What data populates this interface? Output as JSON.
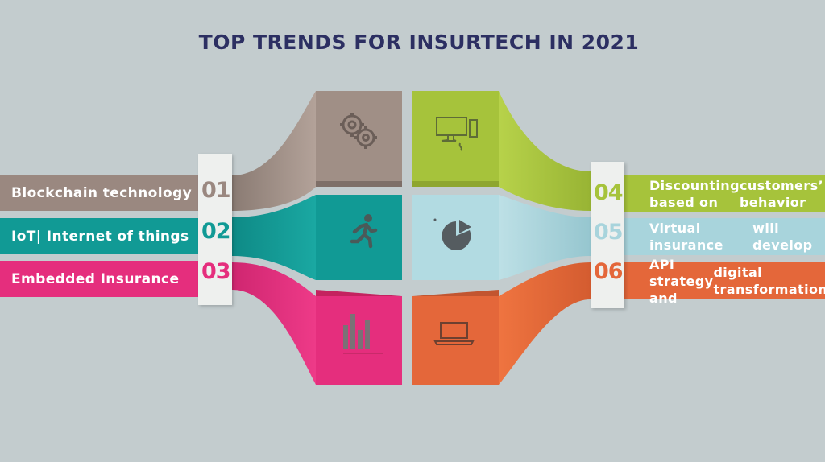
{
  "title": "TOP TRENDS FOR INSURTECH IN 2021",
  "colors": {
    "background": "#c3ccce",
    "title": "#2c2f62",
    "brown": "#9a8880",
    "teal": "#119a95",
    "pink": "#e52e7d",
    "green": "#a6c33b",
    "light_blue": "#a8d4dc",
    "orange": "#e4673a"
  },
  "left_items": [
    {
      "number": "01",
      "label": "Blockchain technology",
      "color": "#9a8880",
      "icon": "gears-icon"
    },
    {
      "number": "02",
      "label": "IoT| Internet of things",
      "color": "#119a95",
      "icon": "running-person-icon"
    },
    {
      "number": "03",
      "label": "Embedded Insurance",
      "color": "#e52e7d",
      "icon": "bar-chart-icon"
    }
  ],
  "right_items": [
    {
      "number": "04",
      "line1": "Discounting based on",
      "line2": "customers’ behavior",
      "color": "#a6c33b",
      "icon": "desktop-computer-icon"
    },
    {
      "number": "05",
      "line1": "Virtual insurance",
      "line2": "will develop",
      "color": "#a8d4dc",
      "icon": "pie-chart-icon"
    },
    {
      "number": "06",
      "line1": "API strategy and",
      "line2": "digital transformation",
      "color": "#e4673a",
      "icon": "laptop-icon"
    }
  ]
}
